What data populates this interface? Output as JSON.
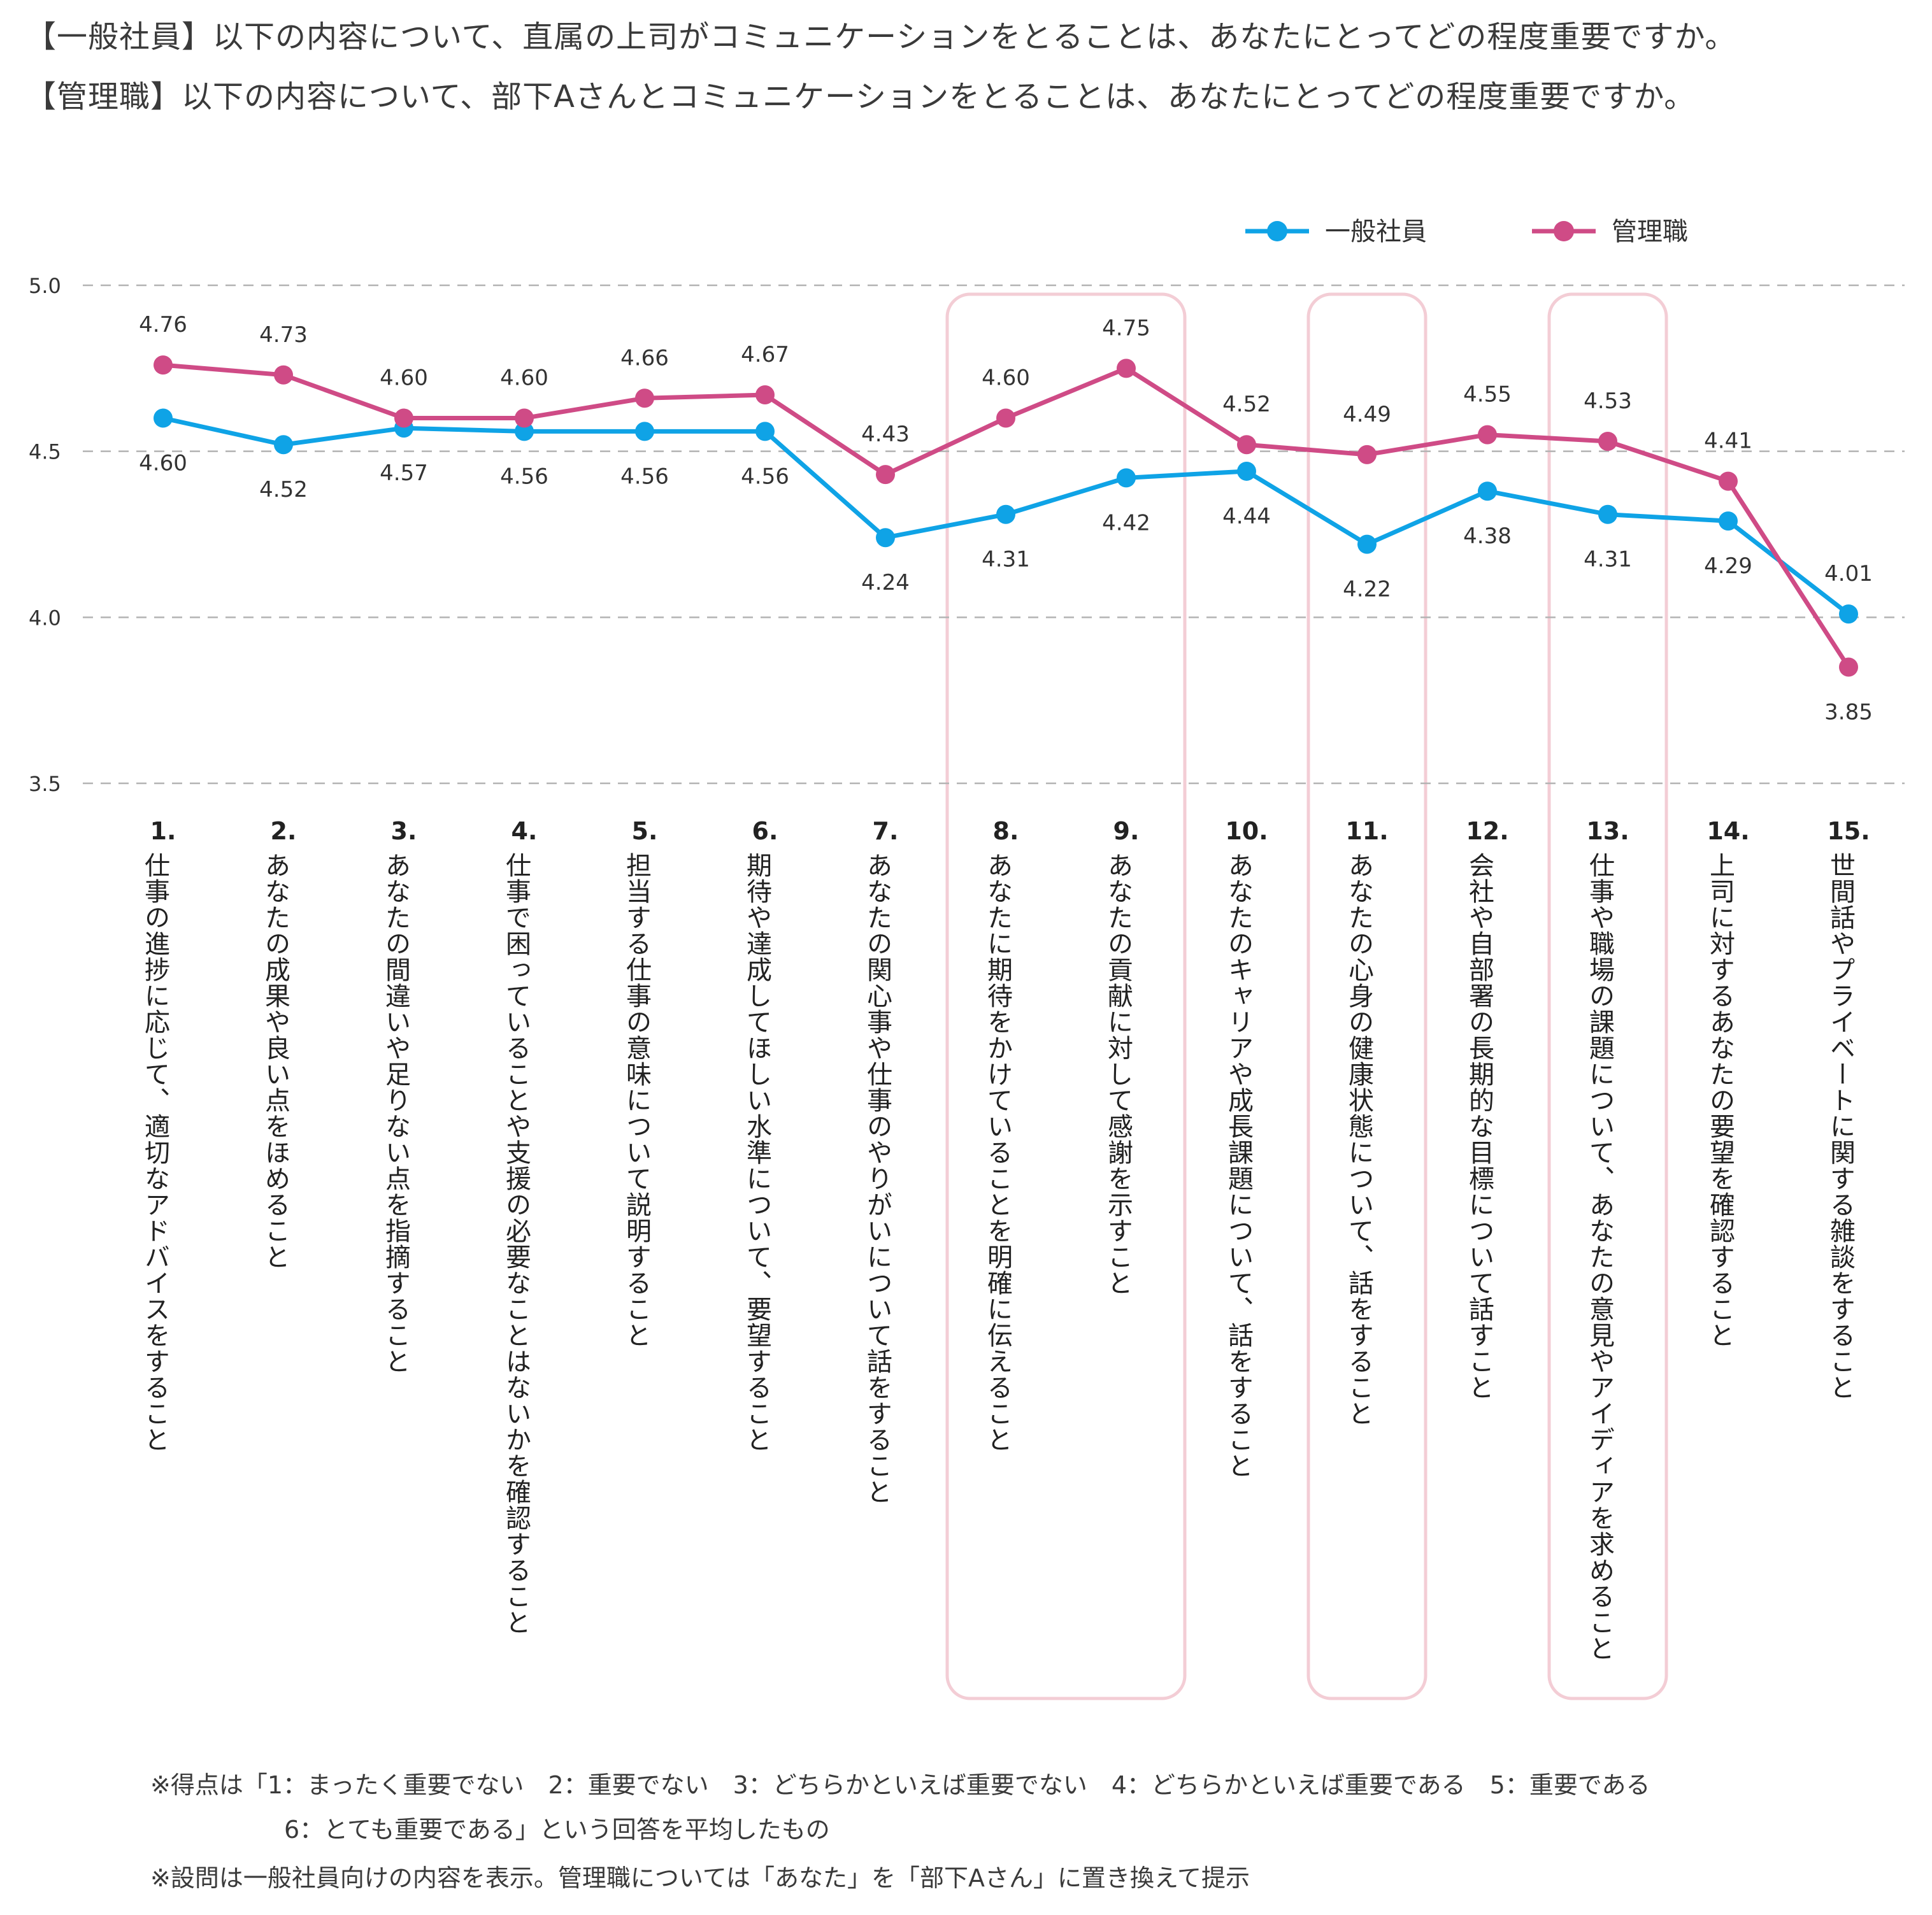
{
  "titles": {
    "line1": "【一般社員】以下の内容について、直属の上司がコミュニケーションをとることは、あなたにとってどの程度重要ですか。",
    "line2": "【管理職】以下の内容について、部下Aさんとコミュニケーションをとることは、あなたにとってどの程度重要ですか。"
  },
  "notes": {
    "line1": "※得点は「1：まったく重要でない　2：重要でない　3：どちらかといえば重要でない　4：どちらかといえば重要である　5：重要である",
    "line2": "6：とても重要である」という回答を平均したもの",
    "line3": "※設問は一般社員向けの内容を表示。管理職については「あなた」を「部下Aさん」に置き換えて提示"
  },
  "colors": {
    "employee": "#0fa3e6",
    "manager": "#cf4b86",
    "grid": "#b3b3b3",
    "highlight": "#f3cdd5"
  },
  "chart_data": {
    "type": "line",
    "ylim": [
      3.5,
      5.0
    ],
    "yticks": [
      "5.0",
      "4.5",
      "4.0",
      "3.5"
    ],
    "grid": true,
    "legend_position": "top-right",
    "categories": [
      "1.仕事の進捗に応じて、適切なアドバイスをすること",
      "2.あなたの成果や良い点をほめること",
      "3.あなたの間違いや足りない点を指摘すること",
      "4.仕事で困っていることや支援の必要なことはないかを確認すること",
      "5.担当する仕事の意味について説明すること",
      "6.期待や達成してほしい水準について、要望すること",
      "7.あなたの関心事や仕事のやりがいについて話をすること",
      "8.あなたに期待をかけていることを明確に伝えること",
      "9.あなたの貢献に対して感謝を示すこと",
      "10.あなたのキャリアや成長課題について、話をすること",
      "11.あなたの心身の健康状態について、話をすること",
      "12.会社や自部署の長期的な目標について話すこと",
      "13.仕事や職場の課題について、あなたの意見やアイディアを求めること",
      "14.上司に対するあなたの要望を確認すること",
      "15.世間話やプライベートに関する雑談をすること"
    ],
    "category_numbers": [
      "1.",
      "2.",
      "3.",
      "4.",
      "5.",
      "6.",
      "7.",
      "8.",
      "9.",
      "10.",
      "11.",
      "12.",
      "13.",
      "14.",
      "15."
    ],
    "category_texts": [
      "仕事の進捗に応じて、適切なアドバイスをすること",
      "あなたの成果や良い点をほめること",
      "あなたの間違いや足りない点を指摘すること",
      "仕事で困っていることや支援の必要なことはないかを確認すること",
      "担当する仕事の意味について説明すること",
      "期待や達成してほしい水準について、要望すること",
      "あなたの関心事や仕事のやりがいについて話をすること",
      "あなたに期待をかけていることを明確に伝えること",
      "あなたの貢献に対して感謝を示すこと",
      "あなたのキャリアや成長課題について、話をすること",
      "あなたの心身の健康状態について、話をすること",
      "会社や自部署の長期的な目標について話すこと",
      "仕事や職場の課題について、あなたの意見やアイディアを求めること",
      "上司に対するあなたの要望を確認すること",
      "世間話やプライベートに関する雑談をすること"
    ],
    "series": [
      {
        "name": "一般社員",
        "values": [
          4.6,
          4.52,
          4.57,
          4.56,
          4.56,
          4.56,
          4.24,
          4.31,
          4.42,
          4.44,
          4.22,
          4.38,
          4.31,
          4.29,
          4.01
        ],
        "labels": [
          "4.60",
          "4.52",
          "4.57",
          "4.56",
          "4.56",
          "4.56",
          "4.24",
          "4.31",
          "4.42",
          "4.44",
          "4.22",
          "4.38",
          "4.31",
          "4.29",
          "4.01"
        ]
      },
      {
        "name": "管理職",
        "values": [
          4.76,
          4.73,
          4.6,
          4.6,
          4.66,
          4.67,
          4.43,
          4.6,
          4.75,
          4.52,
          4.49,
          4.55,
          4.53,
          4.41,
          3.85
        ],
        "labels": [
          "4.76",
          "4.73",
          "4.60",
          "4.60",
          "4.66",
          "4.67",
          "4.43",
          "4.60",
          "4.75",
          "4.52",
          "4.49",
          "4.55",
          "4.53",
          "4.41",
          "3.85"
        ]
      }
    ],
    "highlighted_groups": [
      [
        8,
        9
      ],
      [
        11
      ],
      [
        13
      ]
    ]
  }
}
